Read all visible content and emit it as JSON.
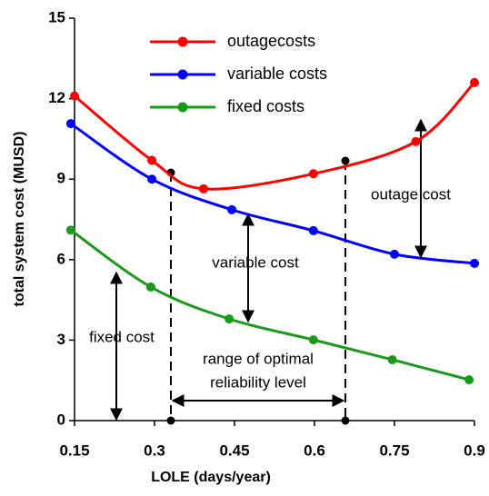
{
  "chart_data": {
    "type": "line",
    "xlabel": "LOLE (days/year)",
    "ylabel": "total system cost (MUSD)",
    "xlim": [
      0.15,
      0.9
    ],
    "xticks": [
      0.15,
      0.3,
      0.45,
      0.6,
      0.75,
      0.9
    ],
    "ylim": [
      0,
      15
    ],
    "yticks": [
      0,
      3,
      6,
      9,
      12,
      15
    ],
    "legend": "top",
    "series": [
      {
        "name": "outagecosts",
        "color": "#ff0000",
        "x": [
          0.15,
          0.295,
          0.392,
          0.598,
          0.79,
          0.9
        ],
        "values": [
          12.1,
          9.7,
          8.64,
          9.2,
          10.4,
          12.6
        ]
      },
      {
        "name": "variable costs",
        "color": "#0000ff",
        "x": [
          0.143,
          0.295,
          0.445,
          0.598,
          0.75,
          0.9
        ],
        "values": [
          11.07,
          9.0,
          7.86,
          7.08,
          6.2,
          5.86
        ]
      },
      {
        "name": "fixed costs",
        "color": "#1a9a1a",
        "x": [
          0.143,
          0.293,
          0.44,
          0.598,
          0.746,
          0.89
        ],
        "values": [
          7.1,
          4.98,
          3.79,
          3.01,
          2.27,
          1.52
        ]
      }
    ],
    "annotations": [
      "outage cost",
      "variable cost",
      "fixed cost",
      "range of optimal",
      "reliability level"
    ]
  }
}
